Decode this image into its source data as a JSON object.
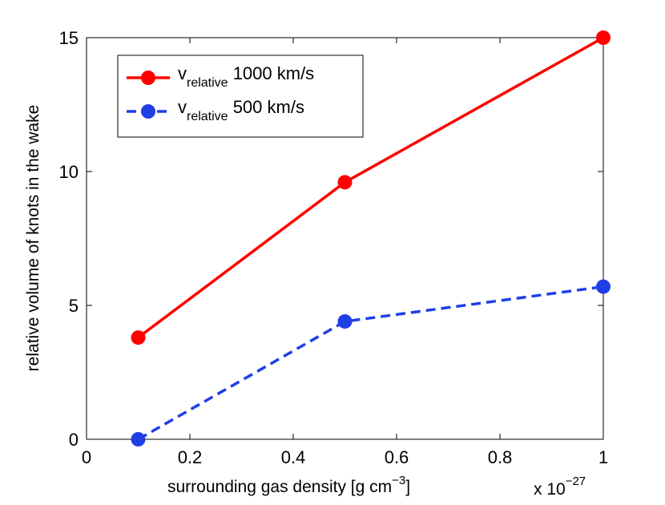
{
  "chart_data": {
    "type": "line",
    "title": "",
    "xlabel": "surrounding gas density [g cm",
    "xlabel_exponent": "−3",
    "xlabel_close": "]",
    "ylabel": "relative volume of knots in the wake",
    "x_multiplier_text": "x 10",
    "x_multiplier_exponent": "−27",
    "xlim": [
      0,
      1
    ],
    "ylim": [
      0,
      15
    ],
    "xticks": [
      0,
      0.2,
      0.4,
      0.6,
      0.8,
      1
    ],
    "xtick_labels": [
      "0",
      "0.2",
      "0.4",
      "0.6",
      "0.8",
      "1"
    ],
    "yticks": [
      0,
      5,
      10,
      15
    ],
    "ytick_labels": [
      "0",
      "5",
      "10",
      "15"
    ],
    "grid": false,
    "legend_position": "top-left",
    "x": [
      0.1,
      0.5,
      1.0
    ],
    "series": [
      {
        "name": "v relative 1000 km/s",
        "legend_main": "v",
        "legend_sub": "relative",
        "legend_rest": " 1000 km/s",
        "values": [
          3.8,
          9.6,
          15.0
        ],
        "color": "#ff0000",
        "line_style": "solid"
      },
      {
        "name": "v relative 500 km/s",
        "legend_main": "v",
        "legend_sub": "relative",
        "legend_rest": " 500 km/s",
        "values": [
          0.0,
          4.4,
          5.7
        ],
        "color": "#1f3fe6",
        "line_style": "dashed"
      }
    ]
  }
}
